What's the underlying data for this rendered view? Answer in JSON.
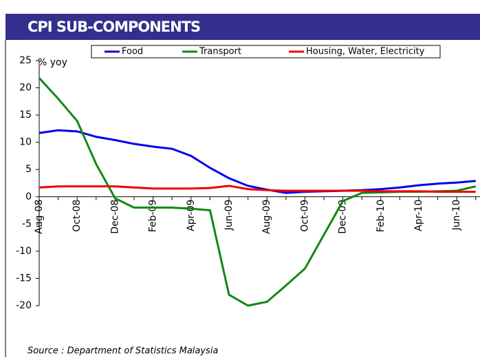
{
  "chart_data": {
    "type": "line",
    "title": "CPI SUB-COMPONENTS",
    "y_label": "% yoy",
    "source": "Source : Department of Statistics Malaysia",
    "categories": [
      "Aug-08",
      null,
      "Oct-08",
      null,
      "Dec-08",
      null,
      "Feb-09",
      null,
      "Apr-09",
      null,
      "Jun-09",
      null,
      "Aug-09",
      null,
      "Oct-09",
      null,
      "Dec-09",
      null,
      "Feb-10",
      null,
      "Apr-10",
      null,
      "Jun-10",
      null
    ],
    "series": [
      {
        "name": "Food",
        "color": "#0000ee",
        "values": [
          11.7,
          12.2,
          12.0,
          11.0,
          10.4,
          9.7,
          9.2,
          8.8,
          7.5,
          5.3,
          3.4,
          2.0,
          1.3,
          0.7,
          0.9,
          1.0,
          1.1,
          1.2,
          1.4,
          1.7,
          2.1,
          2.4,
          2.6,
          2.9
        ]
      },
      {
        "name": "Transport",
        "color": "#118811",
        "values": [
          21.8,
          18.0,
          13.9,
          6.0,
          -0.3,
          -2.0,
          -2.0,
          -2.0,
          -2.2,
          -2.5,
          -18.0,
          -20.0,
          -19.3,
          -16.3,
          -13.2,
          -7.0,
          -0.8,
          0.7,
          0.8,
          0.9,
          0.9,
          1.0,
          1.1,
          1.9
        ]
      },
      {
        "name": "Housing, Water, Electricity",
        "color": "#ee0000",
        "values": [
          1.7,
          1.9,
          1.9,
          1.9,
          1.9,
          1.7,
          1.5,
          1.5,
          1.5,
          1.6,
          2.0,
          1.4,
          1.2,
          1.1,
          1.1,
          1.1,
          1.1,
          1.1,
          1.0,
          1.0,
          1.0,
          0.9,
          0.9,
          0.9
        ]
      }
    ],
    "ylim": [
      -20,
      25
    ],
    "yticks": [
      -20,
      -15,
      -10,
      -5,
      0,
      5,
      10,
      15,
      20,
      25
    ],
    "grid": false,
    "legend": "top"
  }
}
